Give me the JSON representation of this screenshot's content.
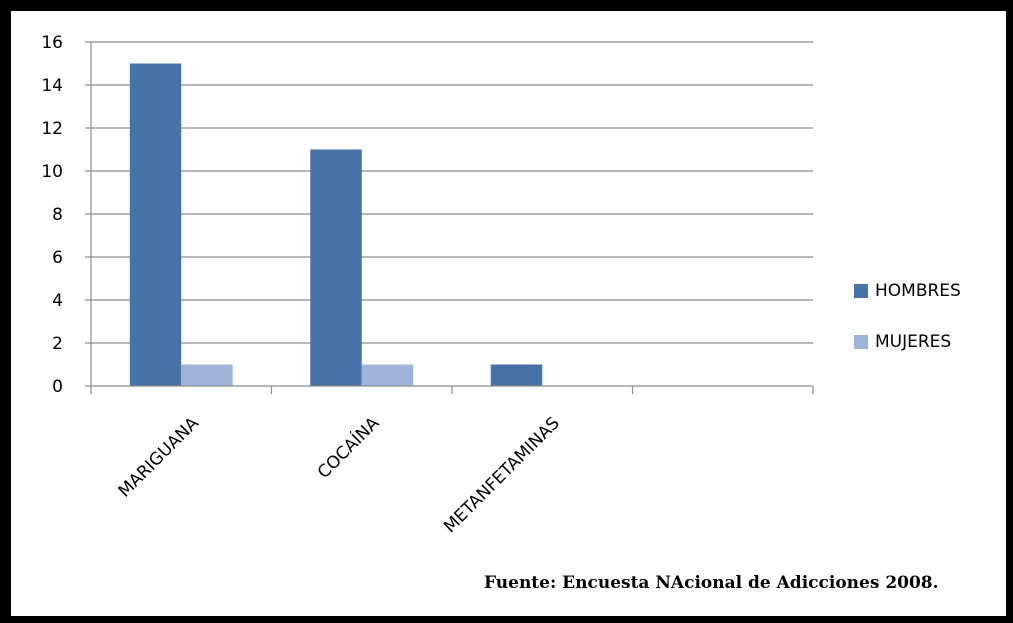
{
  "chart_data": {
    "type": "bar",
    "title": "",
    "xlabel": "",
    "ylabel": "",
    "categories": [
      "MARIGUANA",
      "COCAÍNA",
      "METANFETAMINAS",
      ""
    ],
    "series": [
      {
        "name": "HOMBRES",
        "values": [
          15,
          11,
          1,
          0
        ],
        "color": "#4672a8"
      },
      {
        "name": "MUJERES",
        "values": [
          1,
          1,
          0,
          0
        ],
        "color": "#9fb2d9"
      }
    ],
    "ylim": [
      0,
      16
    ],
    "yticks": [
      0,
      2,
      4,
      6,
      8,
      10,
      12,
      14,
      16
    ],
    "grid": true,
    "legend_position": "right"
  },
  "source_note": "Fuente: Encuesta NAcional de Adicciones 2008."
}
